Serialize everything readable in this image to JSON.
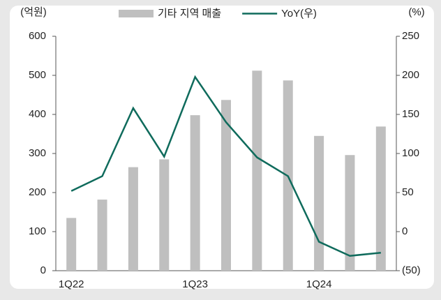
{
  "chart_data": {
    "type": "bar_line",
    "y_label": "(억원)",
    "y2_label": "(%)",
    "categories": [
      "1Q22",
      null,
      null,
      null,
      "1Q23",
      null,
      null,
      null,
      "1Q24",
      null,
      null
    ],
    "series": [
      {
        "name": "기타 지역 매출",
        "type": "bar",
        "color": "#bfbfbf",
        "values": [
          135,
          182,
          265,
          285,
          398,
          437,
          512,
          487,
          345,
          296,
          369
        ]
      },
      {
        "name": "YoY(우)",
        "type": "line",
        "axis": "y2",
        "color": "#0f6b5c",
        "values": [
          52,
          71,
          158,
          96,
          198,
          140,
          95,
          71,
          -13,
          -31,
          -27
        ]
      }
    ],
    "ylim": [
      0,
      600
    ],
    "yticks": [
      0,
      100,
      200,
      300,
      400,
      500,
      600
    ],
    "y2lim": [
      -50,
      250
    ],
    "y2ticks": [
      {
        "value": -50,
        "label": "(50)"
      },
      0,
      50,
      100,
      150,
      200,
      250
    ],
    "legend": "top"
  }
}
